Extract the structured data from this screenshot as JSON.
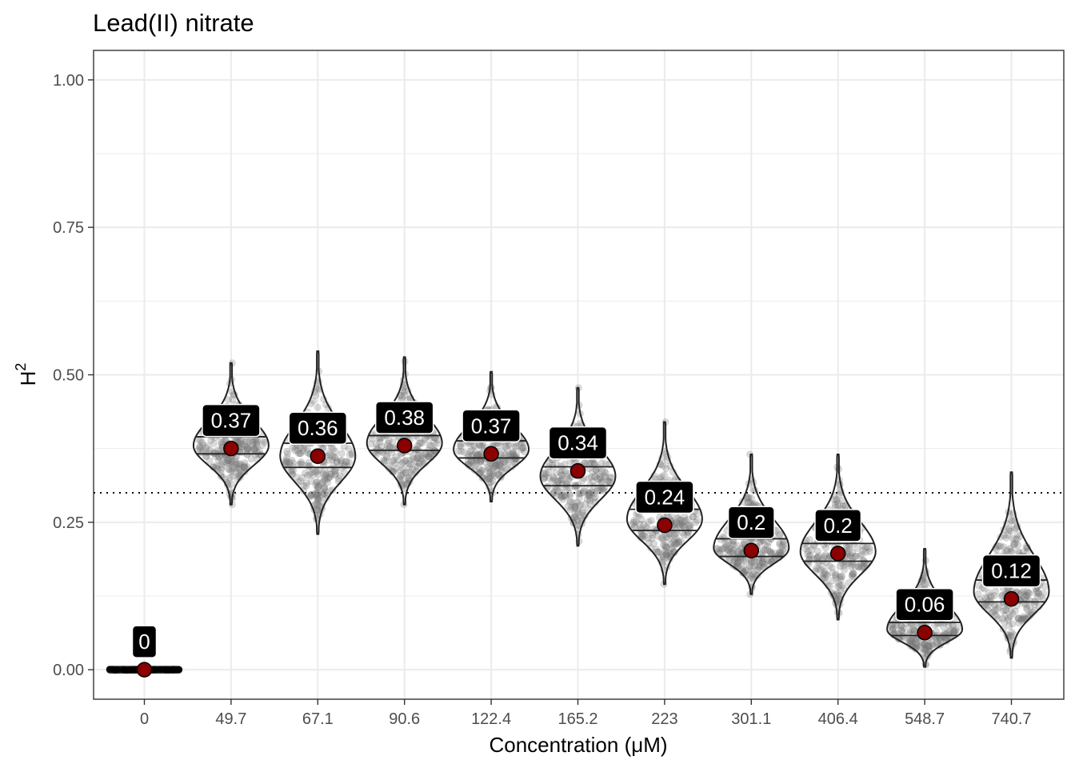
{
  "chart_data": {
    "type": "violin",
    "title": "Lead(II) nitrate",
    "xlabel": "Concentration (μM)",
    "ylabel": "H",
    "ylabel_superscript": "2",
    "categories": [
      "0",
      "49.7",
      "67.1",
      "90.6",
      "122.4",
      "165.2",
      "223",
      "301.1",
      "406.4",
      "548.7",
      "740.7"
    ],
    "ylim": [
      -0.05,
      1.05
    ],
    "yticks": [
      0.0,
      0.25,
      0.5,
      0.75,
      1.0
    ],
    "ytick_labels": [
      "0.00",
      "0.25",
      "0.50",
      "0.75",
      "1.00"
    ],
    "reference_line": 0.3,
    "series": [
      {
        "category": "0",
        "point": 0.0,
        "label": "0",
        "min": 0.0,
        "max": 0.0,
        "q1": 0.0,
        "median": 0.0,
        "q3": 0.0
      },
      {
        "category": "49.7",
        "point": 0.375,
        "label": "0.37",
        "min": 0.28,
        "max": 0.52,
        "q1": 0.366,
        "median": 0.38,
        "q3": 0.395
      },
      {
        "category": "67.1",
        "point": 0.362,
        "label": "0.36",
        "min": 0.23,
        "max": 0.54,
        "q1": 0.343,
        "median": 0.362,
        "q3": 0.384
      },
      {
        "category": "90.6",
        "point": 0.38,
        "label": "0.38",
        "min": 0.28,
        "max": 0.53,
        "q1": 0.372,
        "median": 0.384,
        "q3": 0.397
      },
      {
        "category": "122.4",
        "point": 0.366,
        "label": "0.37",
        "min": 0.285,
        "max": 0.505,
        "q1": 0.359,
        "median": 0.373,
        "q3": 0.388
      },
      {
        "category": "165.2",
        "point": 0.337,
        "label": "0.34",
        "min": 0.21,
        "max": 0.478,
        "q1": 0.312,
        "median": 0.328,
        "q3": 0.344
      },
      {
        "category": "223",
        "point": 0.245,
        "label": "0.24",
        "min": 0.145,
        "max": 0.42,
        "q1": 0.236,
        "median": 0.255,
        "q3": 0.272
      },
      {
        "category": "301.1",
        "point": 0.202,
        "label": "0.2",
        "min": 0.128,
        "max": 0.365,
        "q1": 0.192,
        "median": 0.206,
        "q3": 0.222
      },
      {
        "category": "406.4",
        "point": 0.197,
        "label": "0.2",
        "min": 0.085,
        "max": 0.365,
        "q1": 0.184,
        "median": 0.2,
        "q3": 0.214
      },
      {
        "category": "548.7",
        "point": 0.063,
        "label": "0.06",
        "min": 0.005,
        "max": 0.205,
        "q1": 0.058,
        "median": 0.068,
        "q3": 0.08
      },
      {
        "category": "740.7",
        "point": 0.12,
        "label": "0.12",
        "min": 0.02,
        "max": 0.335,
        "q1": 0.115,
        "median": 0.132,
        "q3": 0.152
      }
    ],
    "grid": true,
    "theme": "bw",
    "colors": {
      "point_fill": "#8b0000",
      "label_background": "#000000",
      "label_text": "#ffffff",
      "violin_outline": "#222222",
      "jitter": "#7a7a7a",
      "grid": "#ebebeb",
      "panel_border": "#333333"
    }
  }
}
